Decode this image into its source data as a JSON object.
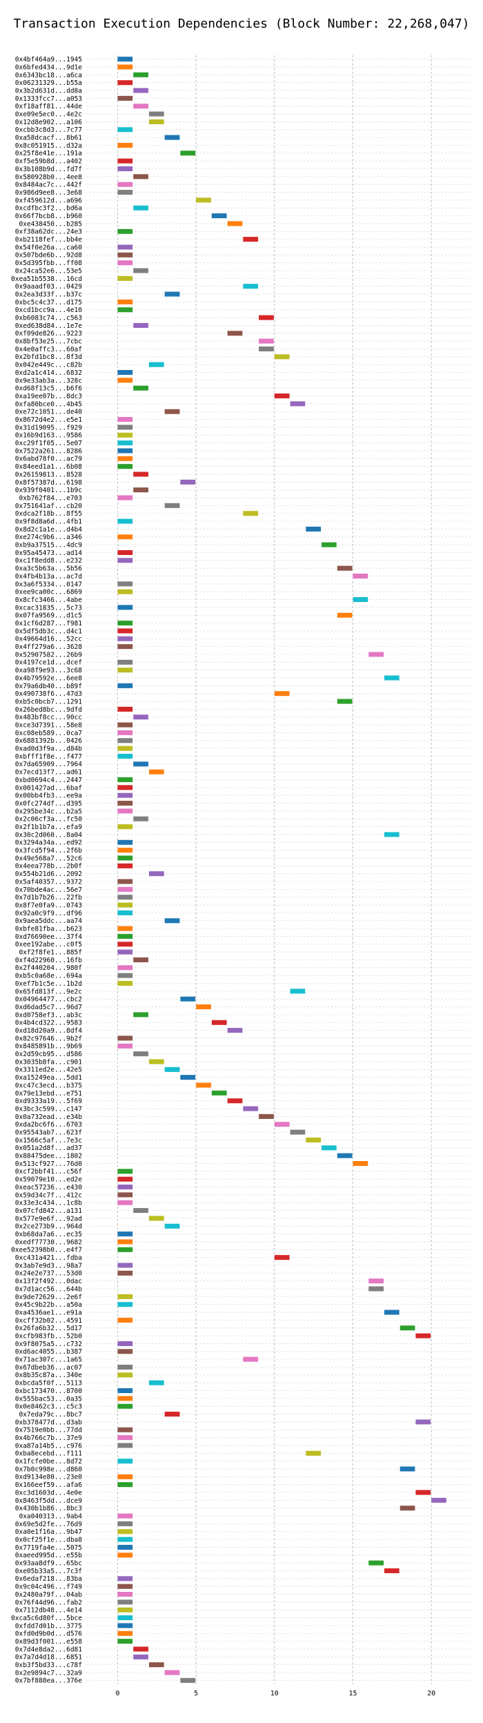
{
  "chart_data": {
    "type": "bar",
    "orientation": "horizontal",
    "title": "Transaction Execution Dependencies (Block Number: 22,268,047)",
    "xlabel": "",
    "ylabel": "",
    "xlim": [
      -2,
      22.5
    ],
    "xticks": [
      0,
      5,
      10,
      15,
      20
    ],
    "grid": true,
    "palette": [
      "#1f77b4",
      "#ff7f0e",
      "#2ca02c",
      "#d62728",
      "#9467bd",
      "#8c564b",
      "#e377c2",
      "#7f7f7f",
      "#bcbd22",
      "#17becf"
    ],
    "bar_length": 1,
    "bars": [
      {
        "label": "0x4bf464a9...1945",
        "start": 0
      },
      {
        "label": "0x6bfed434...9d1e",
        "start": 0
      },
      {
        "label": "0x6343bc18...a6ca",
        "start": 1
      },
      {
        "label": "0x06231329...b55a",
        "start": 0
      },
      {
        "label": "0x3b2d631d...dd8a",
        "start": 1
      },
      {
        "label": "0x1333fcc7...a053",
        "start": 0
      },
      {
        "label": "0xf18aff81...44de",
        "start": 1
      },
      {
        "label": "0xe09e5ec0...4e2c",
        "start": 2
      },
      {
        "label": "0x12d8e902...a106",
        "start": 2
      },
      {
        "label": "0xcbb3c8d3...7c77",
        "start": 0
      },
      {
        "label": "0xa58dcacf...8b61",
        "start": 3
      },
      {
        "label": "0x8c051915...d32a",
        "start": 0
      },
      {
        "label": "0x25f8e41e...191a",
        "start": 4
      },
      {
        "label": "0xf5e59b8d...a402",
        "start": 0
      },
      {
        "label": "0x3b108b9d...fd7f",
        "start": 0
      },
      {
        "label": "0x580928b0...4ee8",
        "start": 1
      },
      {
        "label": "0x8484ac7c...442f",
        "start": 0
      },
      {
        "label": "0x986d9ee8...3e68",
        "start": 0
      },
      {
        "label": "0xf459612d...a696",
        "start": 5
      },
      {
        "label": "0xcdfbc3f2...bd6a",
        "start": 1
      },
      {
        "label": "0x66f7bcb8...b960",
        "start": 6
      },
      {
        "label": "0xe438450...b285",
        "start": 7
      },
      {
        "label": "0xf38a62dc...24e3",
        "start": 0
      },
      {
        "label": "0xb2118fef...bb4e",
        "start": 8
      },
      {
        "label": "0x54f0e26a...ca60",
        "start": 0
      },
      {
        "label": "0x507bde6b...92d8",
        "start": 0
      },
      {
        "label": "0x5d395fbb...ff08",
        "start": 0
      },
      {
        "label": "0x24ca52e6...53e5",
        "start": 1
      },
      {
        "label": "0xea51b5538...16cd",
        "start": 0
      },
      {
        "label": "0x9aaadf03...0429",
        "start": 8
      },
      {
        "label": "0x2ea3d33f...b37c",
        "start": 3
      },
      {
        "label": "0xbc5c4c37...d175",
        "start": 0
      },
      {
        "label": "0xcd1bcc9a...4e10",
        "start": 0
      },
      {
        "label": "0xb6083c74...c563",
        "start": 9
      },
      {
        "label": "0xed638d84...1e7e",
        "start": 1
      },
      {
        "label": "0xf09de826...9223",
        "start": 7
      },
      {
        "label": "0x8bf53e25...7cbc",
        "start": 9
      },
      {
        "label": "0x4e0affc3...60af",
        "start": 9
      },
      {
        "label": "0x2bfd1bc8...8f3d",
        "start": 10
      },
      {
        "label": "0x042e449c...c82b",
        "start": 2
      },
      {
        "label": "0xd2a1c414...6832",
        "start": 0
      },
      {
        "label": "0x9e33ab3a...328c",
        "start": 0
      },
      {
        "label": "0xd68f13c5...b6f6",
        "start": 1
      },
      {
        "label": "0xa19ee07b...8dc3",
        "start": 10
      },
      {
        "label": "0xfa80bce0...4b45",
        "start": 11
      },
      {
        "label": "0xe72c1051...de40",
        "start": 3
      },
      {
        "label": "0x8672d4e2...e5e1",
        "start": 0
      },
      {
        "label": "0x31d19095...f929",
        "start": 0
      },
      {
        "label": "0x16b9d163...9586",
        "start": 0
      },
      {
        "label": "0xc29f1f05...5e07",
        "start": 0
      },
      {
        "label": "0x7522a261...8286",
        "start": 0
      },
      {
        "label": "0x6abd78f0...ac79",
        "start": 0
      },
      {
        "label": "0x84eed1a1...6b08",
        "start": 0
      },
      {
        "label": "0x26159813...8528",
        "start": 1
      },
      {
        "label": "0x8f57387d...6198",
        "start": 4
      },
      {
        "label": "0x939f0401...1b9c",
        "start": 1
      },
      {
        "label": "0xb762f84...e703",
        "start": 0
      },
      {
        "label": "0x751641af...cb20",
        "start": 3
      },
      {
        "label": "0xdca2f18b...8f55",
        "start": 8
      },
      {
        "label": "0x9f8d8a6d...4fb1",
        "start": 0
      },
      {
        "label": "0x8d2c1a1e...d4b4",
        "start": 12
      },
      {
        "label": "0xe274c9b6...a346",
        "start": 0
      },
      {
        "label": "0xb9a37515...4dc9",
        "start": 13
      },
      {
        "label": "0x95a45473...ad14",
        "start": 0
      },
      {
        "label": "0xc1f8edd8...e232",
        "start": 0
      },
      {
        "label": "0xa3c5b63a...5b56",
        "start": 14
      },
      {
        "label": "0x4fb4b13a...ac7d",
        "start": 15
      },
      {
        "label": "0x3a6f5334...0147",
        "start": 0
      },
      {
        "label": "0xee9ca00c...6869",
        "start": 0
      },
      {
        "label": "0x8cfc3466...4abe",
        "start": 15
      },
      {
        "label": "0xcac31835...5c73",
        "start": 0
      },
      {
        "label": "0x07fa9569...d1c5",
        "start": 14
      },
      {
        "label": "0x1cf6d287...f981",
        "start": 0
      },
      {
        "label": "0x5df5db3c...d4c1",
        "start": 0
      },
      {
        "label": "0x49664d16...52cc",
        "start": 0
      },
      {
        "label": "0x4ff279a6...3628",
        "start": 0
      },
      {
        "label": "0x52907582...26b9",
        "start": 16
      },
      {
        "label": "0x4197ce1d...dcef",
        "start": 0
      },
      {
        "label": "0xa98f9e93...3c68",
        "start": 0
      },
      {
        "label": "0x4b79592e...6ee8",
        "start": 17
      },
      {
        "label": "0x79a6db40...b89f",
        "start": 0
      },
      {
        "label": "0x490738f6...47d3",
        "start": 10
      },
      {
        "label": "0xb5c0bcb7...1291",
        "start": 14
      },
      {
        "label": "0x26bed8bc...9dfd",
        "start": 0
      },
      {
        "label": "0x483bf8cc...90cc",
        "start": 1
      },
      {
        "label": "0xce3d7391...58e8",
        "start": 0
      },
      {
        "label": "0xc08eb589...0ca7",
        "start": 0
      },
      {
        "label": "0x6881392b...0426",
        "start": 0
      },
      {
        "label": "0xad0d3f9a...d84b",
        "start": 0
      },
      {
        "label": "0xbfff1f8e...f477",
        "start": 0
      },
      {
        "label": "0x7da65909...7964",
        "start": 1
      },
      {
        "label": "0x7ecd13f7...ad61",
        "start": 2
      },
      {
        "label": "0xbd0694c4...2447",
        "start": 0
      },
      {
        "label": "0x001427ad...6baf",
        "start": 0
      },
      {
        "label": "0x00bb4fb3...ee9a",
        "start": 0
      },
      {
        "label": "0x0fc274df...d395",
        "start": 0
      },
      {
        "label": "0x295be34c...b2a5",
        "start": 0
      },
      {
        "label": "0x2c06cf3a...fc50",
        "start": 1
      },
      {
        "label": "0x2f1b1b7a...efa9",
        "start": 0
      },
      {
        "label": "0x30c2d060...8a04",
        "start": 17
      },
      {
        "label": "0x3294a34a...ed92",
        "start": 0
      },
      {
        "label": "0x3fcd5f94...2f6b",
        "start": 0
      },
      {
        "label": "0x49e568a7...52c6",
        "start": 0
      },
      {
        "label": "0x4eea778b...2b0f",
        "start": 0
      },
      {
        "label": "0x554b21d6...2092",
        "start": 2
      },
      {
        "label": "0x5af40357...9372",
        "start": 0
      },
      {
        "label": "0x70bde4ac...56e7",
        "start": 0
      },
      {
        "label": "0x7d1b7b26...22fb",
        "start": 0
      },
      {
        "label": "0x8f7e0fa9...0743",
        "start": 0
      },
      {
        "label": "0x92a0c9f9...df96",
        "start": 0
      },
      {
        "label": "0x9aea5ddc...aa74",
        "start": 3
      },
      {
        "label": "0xbfe81fba...b623",
        "start": 0
      },
      {
        "label": "0xd76690ee...37f4",
        "start": 0
      },
      {
        "label": "0xee192abe...c0f5",
        "start": 0
      },
      {
        "label": "0xf2f8fe1...885f",
        "start": 0
      },
      {
        "label": "0xf4d22960...16fb",
        "start": 1
      },
      {
        "label": "0x2f440204...980f",
        "start": 0
      },
      {
        "label": "0xb5c0a68e...694a",
        "start": 0
      },
      {
        "label": "0xef7b1c5e...1b2d",
        "start": 0
      },
      {
        "label": "0x65fd813f...9e2c",
        "start": 11
      },
      {
        "label": "0x04964477...cbc2",
        "start": 4
      },
      {
        "label": "0xd6dad5c7...96d7",
        "start": 5
      },
      {
        "label": "0xd0758ef3...ab3c",
        "start": 1
      },
      {
        "label": "0x4b4cd322...9583",
        "start": 6
      },
      {
        "label": "0xd18d20a9...8df4",
        "start": 7
      },
      {
        "label": "0x82c97646...9b2f",
        "start": 0
      },
      {
        "label": "0x8485891b...9b69",
        "start": 0
      },
      {
        "label": "0x2d59cb95...d586",
        "start": 1
      },
      {
        "label": "0x3035b8fa...c901",
        "start": 2
      },
      {
        "label": "0x3311ed2e...42e5",
        "start": 3
      },
      {
        "label": "0xa15249ea...5dd1",
        "start": 4
      },
      {
        "label": "0xc47c3ecd...b375",
        "start": 5
      },
      {
        "label": "0x79e13ebd...e751",
        "start": 6
      },
      {
        "label": "0xd9333a19...5f69",
        "start": 7
      },
      {
        "label": "0x3bc3c599...c147",
        "start": 8
      },
      {
        "label": "0x0a732ead...e34b",
        "start": 9
      },
      {
        "label": "0xda2bc6f6...6703",
        "start": 10
      },
      {
        "label": "0x95543ab7...623f",
        "start": 11
      },
      {
        "label": "0x1566c5af...7e3c",
        "start": 12
      },
      {
        "label": "0x051a2d8f...ad37",
        "start": 13
      },
      {
        "label": "0x88475dee...1802",
        "start": 14
      },
      {
        "label": "0x513cf927...76d0",
        "start": 15
      },
      {
        "label": "0xcf2bbf41...c56f",
        "start": 0
      },
      {
        "label": "0x59079e10...ed2e",
        "start": 0
      },
      {
        "label": "0xeac57236...e430",
        "start": 0
      },
      {
        "label": "0x59d34c7f...412c",
        "start": 0
      },
      {
        "label": "0x33e3c434...1c8b",
        "start": 0
      },
      {
        "label": "0x07cfd842...a131",
        "start": 1
      },
      {
        "label": "0x577e9e6f...92ad",
        "start": 2
      },
      {
        "label": "0x2ce273b9...964d",
        "start": 3
      },
      {
        "label": "0xb68da7a6...ec35",
        "start": 0
      },
      {
        "label": "0xedf77730...9682",
        "start": 0
      },
      {
        "label": "0xee52398b0...e4f7",
        "start": 0
      },
      {
        "label": "0xc431a421...fdba",
        "start": 10
      },
      {
        "label": "0x3ab7e9d3...98a7",
        "start": 0
      },
      {
        "label": "0x24e2e737...53d0",
        "start": 0
      },
      {
        "label": "0x13f2f492...0dac",
        "start": 16
      },
      {
        "label": "0x7d1acc56...644b",
        "start": 16
      },
      {
        "label": "0x9de72629...2e6f",
        "start": 0
      },
      {
        "label": "0x45c9b22b...a50a",
        "start": 0
      },
      {
        "label": "0xa4536ae1...e91a",
        "start": 17
      },
      {
        "label": "0xcff32b02...4591",
        "start": 0
      },
      {
        "label": "0x26fa6b32...5d17",
        "start": 18
      },
      {
        "label": "0xcfb983fb...52b0",
        "start": 19
      },
      {
        "label": "0x9f8075a5...c732",
        "start": 0
      },
      {
        "label": "0xd6ac4055...b387",
        "start": 0
      },
      {
        "label": "0x71ac307c...1a65",
        "start": 8
      },
      {
        "label": "0x67dbeb36...ac07",
        "start": 0
      },
      {
        "label": "0x8b35c87a...340e",
        "start": 0
      },
      {
        "label": "0xbcda5f0f...5113",
        "start": 2
      },
      {
        "label": "0xbc173470...8700",
        "start": 0
      },
      {
        "label": "0x555bac53...0a35",
        "start": 0
      },
      {
        "label": "0x0e8462c3...c5c3",
        "start": 0
      },
      {
        "label": "0x7eda79c...8bc7",
        "start": 3
      },
      {
        "label": "0xb378477d...d3ab",
        "start": 19
      },
      {
        "label": "0x7519e0bb...77dd",
        "start": 0
      },
      {
        "label": "0x4b766c7b...37e9",
        "start": 0
      },
      {
        "label": "0xa87a14b5...c976",
        "start": 0
      },
      {
        "label": "0xba8ecebd...f111",
        "start": 12
      },
      {
        "label": "0x1fcfe0be...8d72",
        "start": 0
      },
      {
        "label": "0x7b0c998e...d860",
        "start": 18
      },
      {
        "label": "0xd9134e80...23e0",
        "start": 0
      },
      {
        "label": "0x166eef59...afa6",
        "start": 0
      },
      {
        "label": "0xc3d1603d...4e0e",
        "start": 19
      },
      {
        "label": "0x8463f5dd...dce9",
        "start": 20
      },
      {
        "label": "0x430b1b86...8bc3",
        "start": 18
      },
      {
        "label": "0xa040313...9ab4",
        "start": 0
      },
      {
        "label": "0x69e5d2fe...76d9",
        "start": 0
      },
      {
        "label": "0xa0e1f16a...9b47",
        "start": 0
      },
      {
        "label": "0x0cf25f1e...dba8",
        "start": 0
      },
      {
        "label": "0x7719fa4e...5075",
        "start": 0
      },
      {
        "label": "0xaeed995d...e55b",
        "start": 0
      },
      {
        "label": "0x93aa8df9...65bc",
        "start": 16
      },
      {
        "label": "0xe05b33a5...7c3f",
        "start": 17
      },
      {
        "label": "0x6edaf218...83ba",
        "start": 0
      },
      {
        "label": "0x9c04c496...f749",
        "start": 0
      },
      {
        "label": "0x2480a79f...04ab",
        "start": 0
      },
      {
        "label": "0x76f44d96...fab2",
        "start": 0
      },
      {
        "label": "0x7112db48...4e14",
        "start": 0
      },
      {
        "label": "0xca5c6d80f...5bce",
        "start": 0
      },
      {
        "label": "0xfdd7d01b...3775",
        "start": 0
      },
      {
        "label": "0xfd0d9b0d...d576",
        "start": 0
      },
      {
        "label": "0x89d3f001...e558",
        "start": 0
      },
      {
        "label": "0x7d4e8da2...6d81",
        "start": 1
      },
      {
        "label": "0x7a7d4d18...6851",
        "start": 1
      },
      {
        "label": "0xb3f5bd33...c78f",
        "start": 2
      },
      {
        "label": "0x2e9894c7...32a9",
        "start": 3
      },
      {
        "label": "0x7bf888ea...376e",
        "start": 4
      }
    ]
  }
}
